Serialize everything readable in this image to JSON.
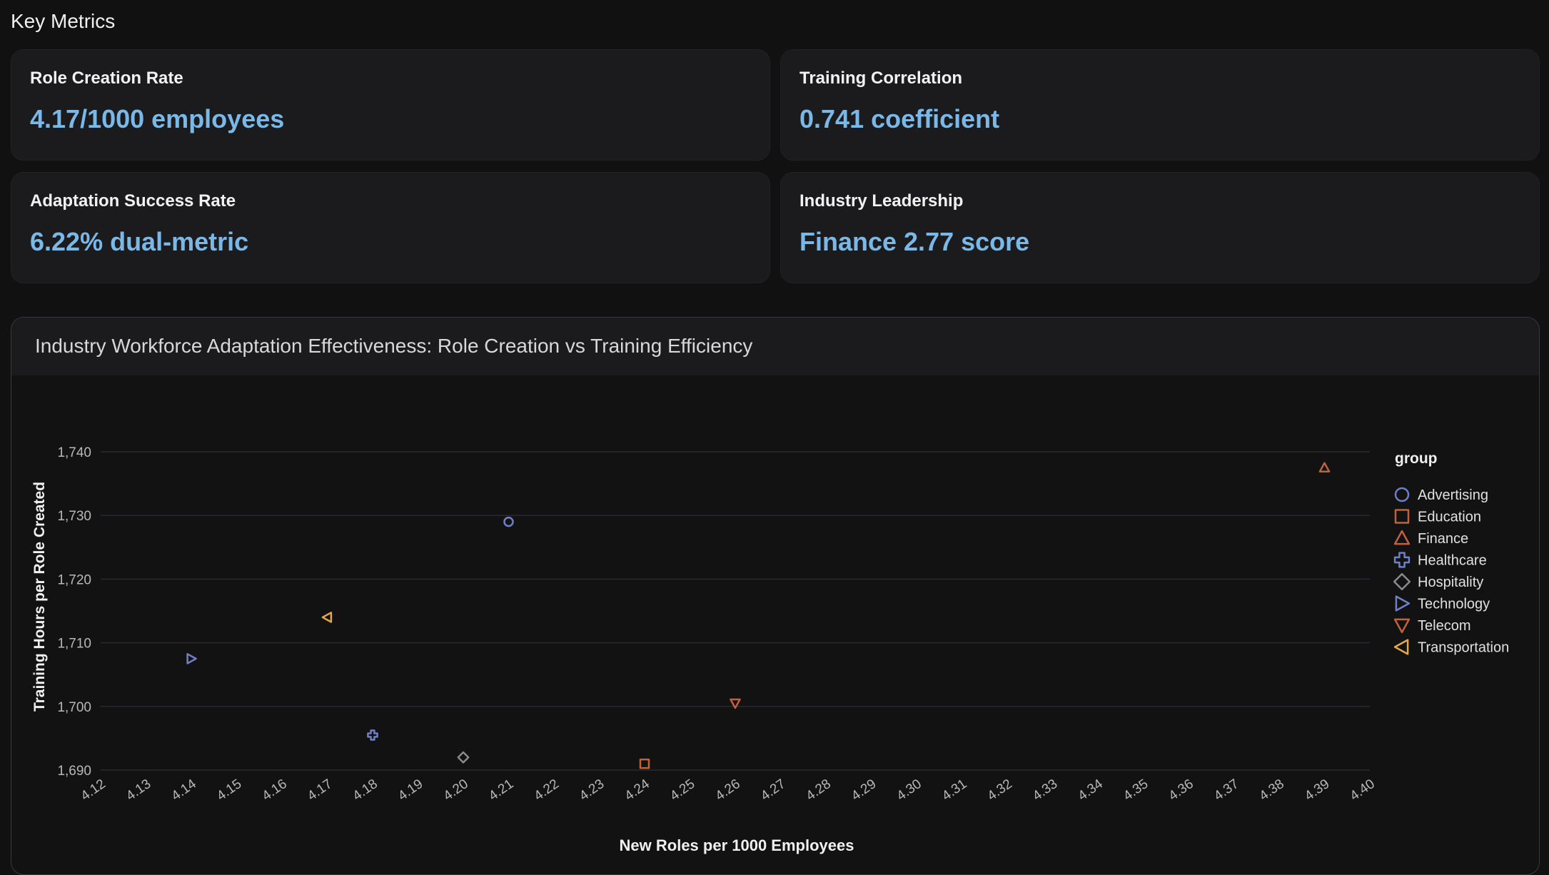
{
  "section_title": "Key Metrics",
  "metrics": [
    {
      "label": "Role Creation Rate",
      "value": "4.17/1000 employees"
    },
    {
      "label": "Training Correlation",
      "value": "0.741 coefficient"
    },
    {
      "label": "Adaptation Success Rate",
      "value": "6.22% dual-metric"
    },
    {
      "label": "Industry Leadership",
      "value": "Finance 2.77 score"
    }
  ],
  "colors": {
    "background": "#111112",
    "card": "#1b1b1d",
    "metric_value": "#7ab8e8",
    "grid": "#2a2a2e"
  },
  "chart_data": {
    "type": "scatter",
    "title": "Industry Workforce Adaptation Effectiveness: Role Creation vs Training Efficiency",
    "xlabel": "New Roles per 1000 Employees",
    "ylabel": "Training Hours per Role Created",
    "xlim": [
      4.12,
      4.4
    ],
    "ylim": [
      1690,
      1740
    ],
    "x_ticks": [
      "4.12",
      "4.13",
      "4.14",
      "4.15",
      "4.16",
      "4.17",
      "4.18",
      "4.19",
      "4.20",
      "4.21",
      "4.22",
      "4.23",
      "4.24",
      "4.25",
      "4.26",
      "4.27",
      "4.28",
      "4.29",
      "4.30",
      "4.31",
      "4.32",
      "4.33",
      "4.34",
      "4.35",
      "4.36",
      "4.37",
      "4.38",
      "4.39",
      "4.40"
    ],
    "y_ticks": [
      "1,690",
      "1,700",
      "1,710",
      "1,720",
      "1,730",
      "1,740"
    ],
    "grid": "horizontal",
    "legend_title": "group",
    "legend_position": "right",
    "series": [
      {
        "name": "Advertising",
        "marker": "circle",
        "color": "#6f7fc8",
        "x": 4.21,
        "y": 1729
      },
      {
        "name": "Education",
        "marker": "square",
        "color": "#c0623e",
        "x": 4.24,
        "y": 1691
      },
      {
        "name": "Finance",
        "marker": "triangle-up",
        "color": "#c0623e",
        "x": 4.39,
        "y": 1737.5
      },
      {
        "name": "Healthcare",
        "marker": "plus",
        "color": "#6f7fc8",
        "x": 4.18,
        "y": 1695.5
      },
      {
        "name": "Hospitality",
        "marker": "diamond",
        "color": "#8a8a8e",
        "x": 4.2,
        "y": 1692
      },
      {
        "name": "Technology",
        "marker": "triangle-right",
        "color": "#6f7fc8",
        "x": 4.14,
        "y": 1707.5
      },
      {
        "name": "Telecom",
        "marker": "triangle-down",
        "color": "#c0623e",
        "x": 4.26,
        "y": 1700.5
      },
      {
        "name": "Transportation",
        "marker": "triangle-left",
        "color": "#e3a84a",
        "x": 4.17,
        "y": 1714
      }
    ]
  }
}
